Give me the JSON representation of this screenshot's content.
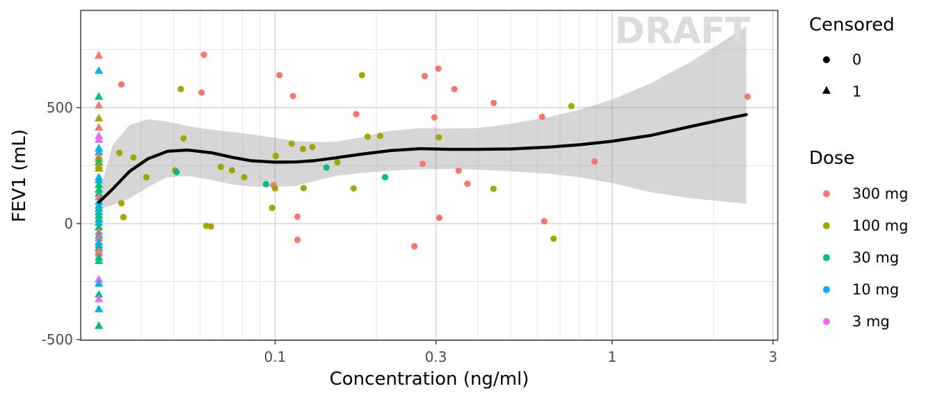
{
  "chart_data": {
    "type": "scatter",
    "watermark": "DRAFT",
    "xlabel": "Concentration (ng/ml)",
    "ylabel": "FEV1 (mL)",
    "xscale": "log10",
    "xlim": [
      0.03,
      3
    ],
    "ylim": [
      -500,
      880
    ],
    "x_ticks": [
      {
        "value": 0.1,
        "label": "0.1"
      },
      {
        "value": 0.3,
        "label": "0.3"
      },
      {
        "value": 1,
        "label": "1"
      },
      {
        "value": 3,
        "label": "3"
      }
    ],
    "y_ticks": [
      {
        "value": -500,
        "label": "-500"
      },
      {
        "value": 0,
        "label": "0"
      },
      {
        "value": 500,
        "label": "500"
      }
    ],
    "legend": {
      "position": "right",
      "censored": {
        "title": "Censored",
        "entries": [
          {
            "label": "0",
            "shape": "circle"
          },
          {
            "label": "1",
            "shape": "triangle"
          }
        ]
      },
      "dose": {
        "title": "Dose",
        "entries": [
          {
            "label": "300 mg",
            "color": "#F8766D"
          },
          {
            "label": "100 mg",
            "color": "#A3A500"
          },
          {
            "label": "30 mg",
            "color": "#00BF7D"
          },
          {
            "label": "10 mg",
            "color": "#00B0F6"
          },
          {
            "label": "3 mg",
            "color": "#E76BF3"
          }
        ]
      }
    },
    "censored_x": 0.03,
    "censored_points": [
      {
        "dose": "300 mg",
        "y": 725
      },
      {
        "dose": "10 mg",
        "y": 660
      },
      {
        "dose": "30 mg",
        "y": 548
      },
      {
        "dose": "300 mg",
        "y": 510
      },
      {
        "dose": "100 mg",
        "y": 455
      },
      {
        "dose": "300 mg",
        "y": 415
      },
      {
        "dose": "3 mg",
        "y": 378
      },
      {
        "dose": "3 mg",
        "y": 362
      },
      {
        "dose": "10 mg",
        "y": 325
      },
      {
        "dose": "10 mg",
        "y": 308
      },
      {
        "dose": "300 mg",
        "y": 290
      },
      {
        "dose": "100 mg",
        "y": 280
      },
      {
        "dose": "30 mg",
        "y": 265
      },
      {
        "dose": "100 mg",
        "y": 250
      },
      {
        "dose": "100 mg",
        "y": 238
      },
      {
        "dose": "10 mg",
        "y": 200
      },
      {
        "dose": "10 mg",
        "y": 188
      },
      {
        "dose": "30 mg",
        "y": 168
      },
      {
        "dose": "30 mg",
        "y": 148
      },
      {
        "dose": "30 mg",
        "y": 130
      },
      {
        "dose": "300 mg",
        "y": 115
      },
      {
        "dose": "10 mg",
        "y": 95
      },
      {
        "dose": "10 mg",
        "y": 78
      },
      {
        "dose": "30 mg",
        "y": 65
      },
      {
        "dose": "10 mg",
        "y": 50
      },
      {
        "dose": "30 mg",
        "y": 35
      },
      {
        "dose": "30 mg",
        "y": 20
      },
      {
        "dose": "10 mg",
        "y": 5
      },
      {
        "dose": "30 mg",
        "y": -15
      },
      {
        "dose": "300 mg",
        "y": -35
      },
      {
        "dose": "10 mg",
        "y": -50
      },
      {
        "dose": "300 mg",
        "y": -62
      },
      {
        "dose": "10 mg",
        "y": -80
      },
      {
        "dose": "10 mg",
        "y": -92
      },
      {
        "dose": "30 mg",
        "y": -105
      },
      {
        "dose": "300 mg",
        "y": -118
      },
      {
        "dose": "300 mg",
        "y": -128
      },
      {
        "dose": "30 mg",
        "y": -145
      },
      {
        "dose": "30 mg",
        "y": -160
      },
      {
        "dose": "3 mg",
        "y": -240
      },
      {
        "dose": "10 mg",
        "y": -258
      },
      {
        "dose": "30 mg",
        "y": -305
      },
      {
        "dose": "3 mg",
        "y": -325
      },
      {
        "dose": "10 mg",
        "y": -368
      },
      {
        "dose": "30 mg",
        "y": -440
      }
    ],
    "points": [
      {
        "x": 0.035,
        "y": 600,
        "dose": "300 mg"
      },
      {
        "x": 0.035,
        "y": 88,
        "dose": "100 mg"
      },
      {
        "x": 0.0355,
        "y": 28,
        "dose": "100 mg"
      },
      {
        "x": 0.0345,
        "y": 305,
        "dose": "100 mg"
      },
      {
        "x": 0.038,
        "y": 285,
        "dose": "100 mg"
      },
      {
        "x": 0.0415,
        "y": 200,
        "dose": "100 mg"
      },
      {
        "x": 0.0505,
        "y": 230,
        "dose": "100 mg"
      },
      {
        "x": 0.051,
        "y": 222,
        "dose": "30 mg"
      },
      {
        "x": 0.0525,
        "y": 580,
        "dose": "100 mg"
      },
      {
        "x": 0.0535,
        "y": 368,
        "dose": "100 mg"
      },
      {
        "x": 0.0605,
        "y": 565,
        "dose": "300 mg"
      },
      {
        "x": 0.0615,
        "y": 728,
        "dose": "300 mg"
      },
      {
        "x": 0.0625,
        "y": -10,
        "dose": "100 mg"
      },
      {
        "x": 0.0645,
        "y": -12,
        "dose": "100 mg"
      },
      {
        "x": 0.069,
        "y": 245,
        "dose": "100 mg"
      },
      {
        "x": 0.0745,
        "y": 230,
        "dose": "100 mg"
      },
      {
        "x": 0.081,
        "y": 200,
        "dose": "100 mg"
      },
      {
        "x": 0.094,
        "y": 170,
        "dose": "30 mg"
      },
      {
        "x": 0.098,
        "y": 68,
        "dose": "100 mg"
      },
      {
        "x": 0.099,
        "y": 165,
        "dose": "300 mg"
      },
      {
        "x": 0.1,
        "y": 152,
        "dose": "100 mg"
      },
      {
        "x": 0.1005,
        "y": 292,
        "dose": "100 mg"
      },
      {
        "x": 0.103,
        "y": 640,
        "dose": "300 mg"
      },
      {
        "x": 0.112,
        "y": 345,
        "dose": "100 mg"
      },
      {
        "x": 0.113,
        "y": 550,
        "dose": "300 mg"
      },
      {
        "x": 0.1165,
        "y": 30,
        "dose": "300 mg"
      },
      {
        "x": 0.1165,
        "y": -70,
        "dose": "300 mg"
      },
      {
        "x": 0.121,
        "y": 322,
        "dose": "100 mg"
      },
      {
        "x": 0.1215,
        "y": 153,
        "dose": "100 mg"
      },
      {
        "x": 0.129,
        "y": 330,
        "dose": "100 mg"
      },
      {
        "x": 0.142,
        "y": 242,
        "dose": "30 mg"
      },
      {
        "x": 0.153,
        "y": 265,
        "dose": "100 mg"
      },
      {
        "x": 0.171,
        "y": 152,
        "dose": "100 mg"
      },
      {
        "x": 0.174,
        "y": 472,
        "dose": "300 mg"
      },
      {
        "x": 0.181,
        "y": 640,
        "dose": "100 mg"
      },
      {
        "x": 0.188,
        "y": 375,
        "dose": "100 mg"
      },
      {
        "x": 0.205,
        "y": 378,
        "dose": "100 mg"
      },
      {
        "x": 0.212,
        "y": 200,
        "dose": "30 mg"
      },
      {
        "x": 0.259,
        "y": -98,
        "dose": "300 mg"
      },
      {
        "x": 0.274,
        "y": 258,
        "dose": "300 mg"
      },
      {
        "x": 0.278,
        "y": 636,
        "dose": "300 mg"
      },
      {
        "x": 0.297,
        "y": 458,
        "dose": "300 mg"
      },
      {
        "x": 0.305,
        "y": 668,
        "dose": "300 mg"
      },
      {
        "x": 0.306,
        "y": 372,
        "dose": "100 mg"
      },
      {
        "x": 0.307,
        "y": 25,
        "dose": "300 mg"
      },
      {
        "x": 0.3405,
        "y": 580,
        "dose": "300 mg"
      },
      {
        "x": 0.3505,
        "y": 228,
        "dose": "300 mg"
      },
      {
        "x": 0.372,
        "y": 172,
        "dose": "300 mg"
      },
      {
        "x": 0.445,
        "y": 520,
        "dose": "300 mg"
      },
      {
        "x": 0.4445,
        "y": 150,
        "dose": "100 mg"
      },
      {
        "x": 0.62,
        "y": 460,
        "dose": "300 mg"
      },
      {
        "x": 0.629,
        "y": 10,
        "dose": "300 mg"
      },
      {
        "x": 0.6705,
        "y": -65,
        "dose": "100 mg"
      },
      {
        "x": 0.757,
        "y": 507,
        "dose": "100 mg"
      },
      {
        "x": 0.887,
        "y": 268,
        "dose": "300 mg"
      },
      {
        "x": 2.52,
        "y": 548,
        "dose": "300 mg"
      }
    ],
    "smooth": {
      "x": [
        0.03,
        0.033,
        0.037,
        0.042,
        0.048,
        0.055,
        0.065,
        0.075,
        0.085,
        0.1,
        0.115,
        0.13,
        0.15,
        0.18,
        0.22,
        0.27,
        0.33,
        0.4,
        0.5,
        0.65,
        0.8,
        1.0,
        1.3,
        1.7,
        2.1,
        2.5
      ],
      "y": [
        92,
        150,
        225,
        280,
        312,
        317,
        305,
        285,
        271,
        265,
        266,
        271,
        283,
        299,
        315,
        323,
        320,
        320,
        322,
        330,
        340,
        355,
        380,
        418,
        447,
        470
      ],
      "lower": [
        62,
        80,
        108,
        158,
        200,
        205,
        188,
        168,
        160,
        158,
        162,
        182,
        205,
        218,
        228,
        234,
        236,
        232,
        225,
        215,
        200,
        175,
        135,
        110,
        96,
        86
      ],
      "upper": [
        125,
        340,
        425,
        450,
        440,
        420,
        405,
        395,
        385,
        370,
        355,
        352,
        352,
        372,
        400,
        412,
        410,
        412,
        430,
        460,
        490,
        535,
        605,
        695,
        780,
        850
      ]
    }
  }
}
